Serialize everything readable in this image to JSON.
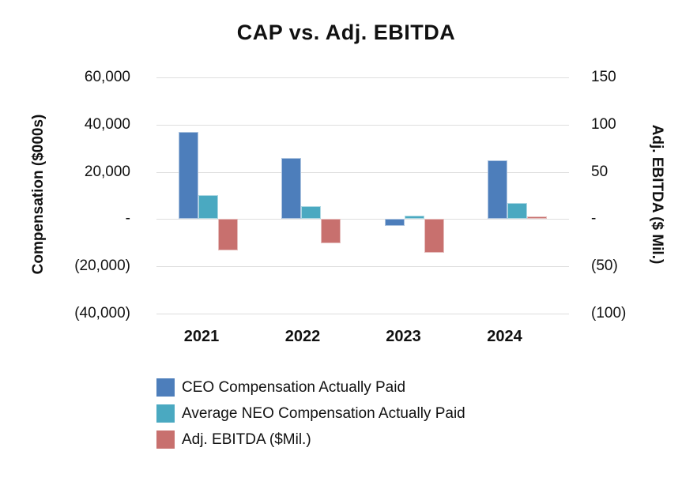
{
  "title": "CAP vs. Adj. EBITDA",
  "left_axis": {
    "title": "Compensation ($000s)",
    "ticks": [
      "60,000",
      "40,000",
      "20,000",
      "-",
      "(20,000)",
      "(40,000)"
    ]
  },
  "right_axis": {
    "title": "Adj. EBITDA ($ Mil.)",
    "ticks": [
      "150",
      "100",
      "50",
      "-",
      "(50)",
      "(100)"
    ]
  },
  "x_axis": {
    "categories": [
      "2021",
      "2022",
      "2023",
      "2024"
    ]
  },
  "legend": [
    {
      "label": "CEO Compensation Actually Paid",
      "color": "#4D7EBB"
    },
    {
      "label": "Average NEO Compensation Actually Paid",
      "color": "#4AA9C1"
    },
    {
      "label": "Adj. EBITDA ($Mil.)",
      "color": "#C8706E"
    }
  ],
  "colors": {
    "ceo_blue": "#4D7EBB",
    "neo_teal": "#4AA9C1",
    "ebitda_red": "#C8706E",
    "gridline": "#DEDEDE"
  },
  "chart_data": {
    "type": "bar",
    "title": "CAP vs. Adj. EBITDA",
    "categories": [
      "2021",
      "2022",
      "2023",
      "2024"
    ],
    "series": [
      {
        "name": "CEO Compensation Actually Paid",
        "axis": "left",
        "color": "#4D7EBB",
        "values": [
          37000,
          26000,
          -2800,
          25000
        ]
      },
      {
        "name": "Average NEO Compensation Actually Paid",
        "axis": "left",
        "color": "#4AA9C1",
        "values": [
          10300,
          5400,
          1400,
          6900
        ]
      },
      {
        "name": "Adj. EBITDA ($Mil.)",
        "axis": "right",
        "color": "#C8706E",
        "values": [
          -33,
          -26,
          -36,
          3
        ]
      }
    ],
    "xlabel": "",
    "ylabel_left": "Compensation ($000s)",
    "ylabel_right": "Adj. EBITDA ($ Mil.)",
    "left_ylim": [
      -40000,
      60000
    ],
    "right_ylim": [
      -100,
      150
    ],
    "left_tick_step": 20000,
    "right_tick_step": 50,
    "grid": true,
    "legend_position": "bottom-left"
  }
}
